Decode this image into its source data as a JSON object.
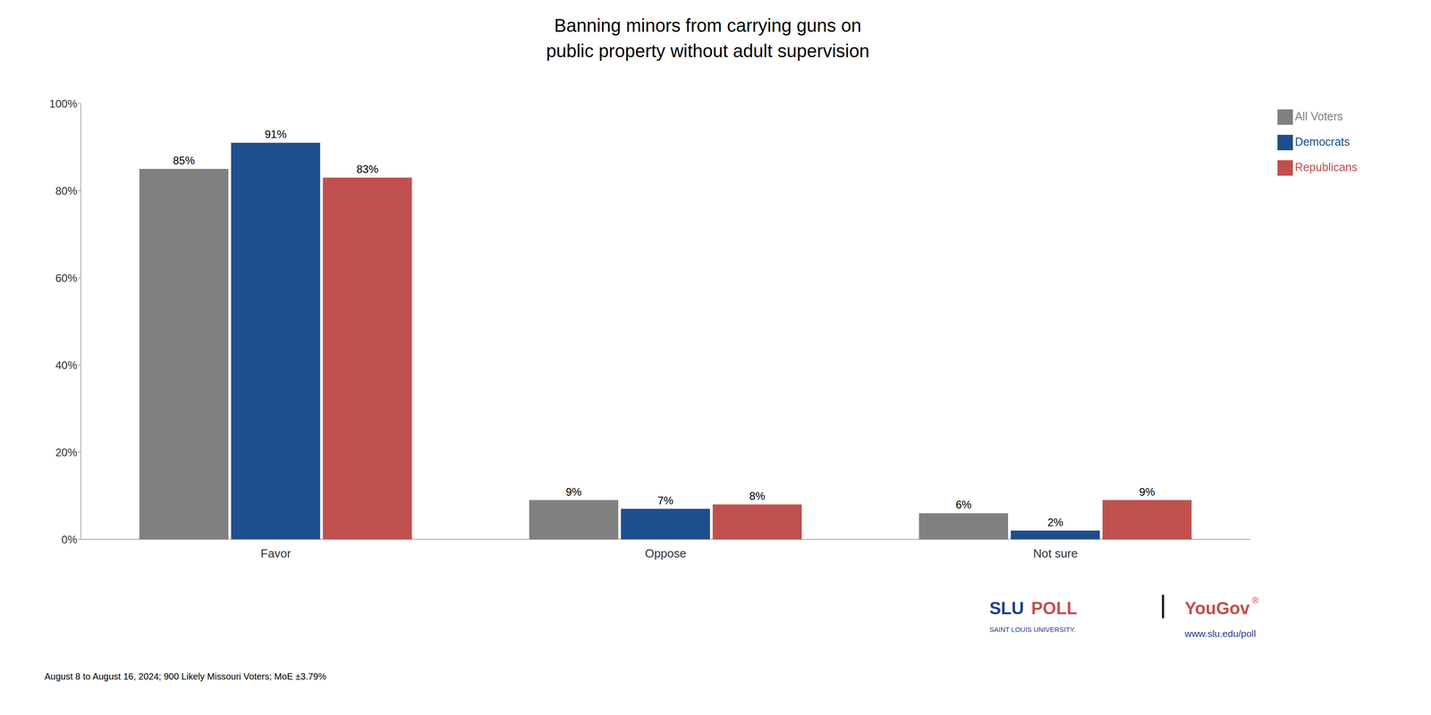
{
  "chart_data": {
    "type": "bar",
    "title": "Banning minors from carrying guns on\npublic property without adult supervision",
    "categories": [
      "Favor",
      "Oppose",
      "Not sure"
    ],
    "series": [
      {
        "name": "All Voters",
        "color": "#808080",
        "values": [
          85,
          9,
          6
        ],
        "value_labels": [
          "85%",
          "9%",
          "6%"
        ]
      },
      {
        "name": "Democrats",
        "color": "#1f4e8c",
        "values": [
          91,
          7,
          2
        ],
        "value_labels": [
          "91%",
          "7%",
          "2%"
        ]
      },
      {
        "name": "Republicans",
        "color": "#c0504d",
        "values": [
          83,
          8,
          9
        ],
        "value_labels": [
          "83%",
          "8%",
          "9%"
        ]
      }
    ],
    "ylim": [
      0,
      100
    ],
    "yticks": [
      {
        "value": 0,
        "label": "0%"
      },
      {
        "value": 20,
        "label": "20%"
      },
      {
        "value": 40,
        "label": "40%"
      },
      {
        "value": 60,
        "label": "60%"
      },
      {
        "value": 80,
        "label": "80%"
      },
      {
        "value": 100,
        "label": "100%"
      }
    ],
    "grid": false,
    "data_labels": true,
    "legend": "right",
    "annotations": [
      {
        "text": "August 8 to August 16, 2024; 900 Likely Missouri Voters; MoE ±3.79%",
        "color": "#000000"
      },
      {
        "text": "SLU",
        "color": "#1f3d8c"
      },
      {
        "text": "POLL",
        "color": "#c0504d"
      },
      {
        "text": "SAINT LOUIS UNIVERSITY.",
        "color": "#1f3d8c"
      },
      {
        "text": "|",
        "color": "#000000"
      },
      {
        "text": "YouGov",
        "color": "#c0504d"
      },
      {
        "text": "®",
        "color": "#c0504d"
      },
      {
        "text": "www.slu.edu/poll",
        "color": "#1f3d8c"
      }
    ]
  }
}
